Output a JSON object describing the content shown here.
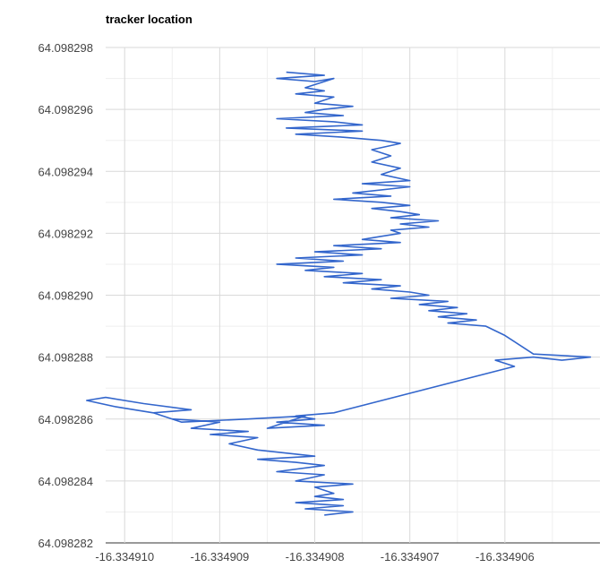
{
  "chart_data": {
    "type": "line",
    "title": "tracker location",
    "xlabel": "",
    "ylabel": "",
    "xlim": [
      -16.3349102,
      -16.334905
    ],
    "ylim": [
      64.098282,
      64.098298
    ],
    "grid": true,
    "legend": "none",
    "x_ticks": [
      "-16.334910",
      "-16.334909",
      "-16.334908",
      "-16.334907",
      "-16.334906"
    ],
    "y_ticks": [
      "64.098298",
      "64.098296",
      "64.098294",
      "64.098292",
      "64.098290",
      "64.098288",
      "64.098286",
      "64.098284",
      "64.098282"
    ],
    "series": [
      {
        "color": "#3366cc",
        "points": [
          [
            -16.3349083,
            64.0982972
          ],
          [
            -16.3349079,
            64.0982971
          ],
          [
            -16.3349084,
            64.098297
          ],
          [
            -16.334908,
            64.0982969
          ],
          [
            -16.3349078,
            64.098297
          ],
          [
            -16.3349081,
            64.0982967
          ],
          [
            -16.3349079,
            64.0982966
          ],
          [
            -16.3349082,
            64.0982965
          ],
          [
            -16.3349078,
            64.0982964
          ],
          [
            -16.334908,
            64.0982962
          ],
          [
            -16.3349076,
            64.0982961
          ],
          [
            -16.3349079,
            64.098296
          ],
          [
            -16.3349081,
            64.0982959
          ],
          [
            -16.3349077,
            64.0982958
          ],
          [
            -16.3349084,
            64.0982957
          ],
          [
            -16.3349078,
            64.0982956
          ],
          [
            -16.3349075,
            64.0982955
          ],
          [
            -16.3349083,
            64.0982954
          ],
          [
            -16.3349075,
            64.0982953
          ],
          [
            -16.3349082,
            64.0982952
          ],
          [
            -16.3349077,
            64.0982951
          ],
          [
            -16.3349073,
            64.098295
          ],
          [
            -16.3349071,
            64.0982949
          ],
          [
            -16.3349074,
            64.0982947
          ],
          [
            -16.3349072,
            64.0982945
          ],
          [
            -16.3349074,
            64.0982943
          ],
          [
            -16.3349071,
            64.0982941
          ],
          [
            -16.3349073,
            64.0982939
          ],
          [
            -16.334907,
            64.0982937
          ],
          [
            -16.3349075,
            64.0982936
          ],
          [
            -16.334907,
            64.0982935
          ],
          [
            -16.3349076,
            64.0982933
          ],
          [
            -16.3349072,
            64.0982932
          ],
          [
            -16.3349078,
            64.0982931
          ],
          [
            -16.3349073,
            64.098293
          ],
          [
            -16.334907,
            64.0982929
          ],
          [
            -16.3349074,
            64.0982928
          ],
          [
            -16.3349071,
            64.0982927
          ],
          [
            -16.3349069,
            64.0982926
          ],
          [
            -16.3349072,
            64.0982925
          ],
          [
            -16.3349067,
            64.0982924
          ],
          [
            -16.3349071,
            64.0982923
          ],
          [
            -16.3349068,
            64.0982922
          ],
          [
            -16.3349072,
            64.0982921
          ],
          [
            -16.3349071,
            64.098292
          ],
          [
            -16.3349073,
            64.0982919
          ],
          [
            -16.3349075,
            64.0982918
          ],
          [
            -16.3349071,
            64.0982917
          ],
          [
            -16.3349078,
            64.0982916
          ],
          [
            -16.3349073,
            64.0982915
          ],
          [
            -16.334908,
            64.0982914
          ],
          [
            -16.3349075,
            64.0982913
          ],
          [
            -16.3349082,
            64.0982912
          ],
          [
            -16.3349077,
            64.0982911
          ],
          [
            -16.3349084,
            64.098291
          ],
          [
            -16.3349078,
            64.0982909
          ],
          [
            -16.3349081,
            64.0982908
          ],
          [
            -16.3349075,
            64.0982907
          ],
          [
            -16.3349079,
            64.0982906
          ],
          [
            -16.3349073,
            64.0982905
          ],
          [
            -16.3349077,
            64.0982904
          ],
          [
            -16.3349071,
            64.0982903
          ],
          [
            -16.3349074,
            64.0982902
          ],
          [
            -16.334907,
            64.0982901
          ],
          [
            -16.3349068,
            64.09829
          ],
          [
            -16.3349072,
            64.0982899
          ],
          [
            -16.3349066,
            64.0982898
          ],
          [
            -16.3349069,
            64.0982897
          ],
          [
            -16.3349065,
            64.0982896
          ],
          [
            -16.3349068,
            64.0982895
          ],
          [
            -16.3349064,
            64.0982894
          ],
          [
            -16.3349067,
            64.0982893
          ],
          [
            -16.3349063,
            64.0982892
          ],
          [
            -16.3349066,
            64.0982891
          ],
          [
            -16.3349062,
            64.098289
          ],
          [
            -16.334906,
            64.0982887
          ],
          [
            -16.3349057,
            64.0982881
          ],
          [
            -16.3349051,
            64.098288
          ],
          [
            -16.3349054,
            64.0982879
          ],
          [
            -16.3349057,
            64.098288
          ],
          [
            -16.3349061,
            64.0982879
          ],
          [
            -16.334906,
            64.0982878
          ],
          [
            -16.3349059,
            64.0982877
          ],
          [
            -16.3349078,
            64.0982862
          ],
          [
            -16.3349082,
            64.0982861
          ],
          [
            -16.334908,
            64.098286
          ],
          [
            -16.3349084,
            64.0982859
          ],
          [
            -16.3349079,
            64.0982858
          ],
          [
            -16.3349085,
            64.0982857
          ],
          [
            -16.3349081,
            64.0982861
          ],
          [
            -16.3349087,
            64.098286
          ],
          [
            -16.3349094,
            64.0982859
          ],
          [
            -16.3349097,
            64.0982862
          ],
          [
            -16.3349101,
            64.0982864
          ],
          [
            -16.3349104,
            64.0982866
          ],
          [
            -16.3349102,
            64.0982867
          ],
          [
            -16.3349098,
            64.0982865
          ],
          [
            -16.3349093,
            64.0982863
          ],
          [
            -16.3349097,
            64.0982862
          ],
          [
            -16.3349095,
            64.098286
          ],
          [
            -16.334909,
            64.0982859
          ],
          [
            -16.3349093,
            64.0982857
          ],
          [
            -16.3349087,
            64.0982856
          ],
          [
            -16.3349091,
            64.0982855
          ],
          [
            -16.3349086,
            64.0982854
          ],
          [
            -16.3349089,
            64.0982852
          ],
          [
            -16.3349086,
            64.098285
          ],
          [
            -16.334908,
            64.0982848
          ],
          [
            -16.3349086,
            64.0982847
          ],
          [
            -16.3349082,
            64.0982846
          ],
          [
            -16.3349079,
            64.0982845
          ],
          [
            -16.3349084,
            64.0982843
          ],
          [
            -16.3349079,
            64.0982842
          ],
          [
            -16.3349082,
            64.098284
          ],
          [
            -16.3349076,
            64.0982839
          ],
          [
            -16.334908,
            64.0982838
          ],
          [
            -16.3349078,
            64.0982836
          ],
          [
            -16.334908,
            64.0982835
          ],
          [
            -16.3349077,
            64.0982834
          ],
          [
            -16.3349082,
            64.0982833
          ],
          [
            -16.3349077,
            64.0982832
          ],
          [
            -16.3349081,
            64.0982831
          ],
          [
            -16.3349076,
            64.098283
          ],
          [
            -16.3349079,
            64.0982829
          ]
        ]
      }
    ]
  }
}
